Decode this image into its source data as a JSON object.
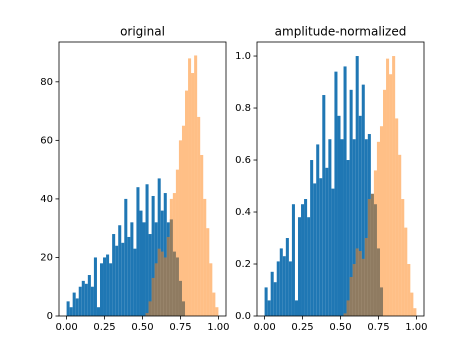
{
  "chart_data": [
    {
      "type": "histogram",
      "title": "original",
      "bins": [
        0,
        0.02,
        0.04,
        0.06,
        0.08,
        0.1,
        0.12,
        0.14,
        0.16,
        0.18,
        0.2,
        0.22,
        0.24,
        0.26,
        0.28,
        0.3,
        0.32,
        0.34,
        0.36,
        0.38,
        0.4,
        0.42,
        0.44,
        0.46,
        0.48,
        0.5,
        0.52,
        0.54,
        0.56,
        0.58,
        0.6,
        0.62,
        0.64,
        0.66,
        0.68,
        0.7,
        0.72,
        0.74,
        0.76,
        0.78,
        0.8,
        0.82,
        0.84,
        0.86,
        0.88,
        0.9,
        0.92,
        0.94,
        0.96,
        0.98,
        1
      ],
      "series": [
        {
          "color": "#1f77b4",
          "opacity": 1,
          "values": [
            5,
            3,
            8,
            6,
            10,
            12,
            11,
            14,
            10,
            20,
            3,
            18,
            20,
            21,
            18,
            28,
            24,
            31,
            25,
            40,
            27,
            32,
            23,
            44,
            36,
            32,
            45,
            28,
            41,
            32,
            47,
            36,
            42,
            32,
            33,
            22,
            20,
            12,
            5,
            0,
            0,
            0,
            0,
            0,
            0,
            0,
            0,
            0,
            0,
            0
          ]
        },
        {
          "color": "#ff7f0e",
          "opacity": 0.5,
          "values": [
            0,
            0,
            0,
            0,
            0,
            0,
            0,
            0,
            0,
            0,
            0,
            0,
            0,
            0,
            0,
            0,
            0,
            0,
            0,
            0,
            0,
            0,
            0,
            0,
            0,
            0,
            1,
            5,
            13,
            18,
            23,
            22,
            20,
            27,
            40,
            42,
            50,
            60,
            65,
            77,
            88,
            83,
            89,
            68,
            55,
            40,
            30,
            18,
            8,
            3
          ]
        }
      ],
      "xlim": [
        -0.05,
        1.05
      ],
      "xticks": [
        {
          "value": 0,
          "label": "0.00"
        },
        {
          "value": 0.25,
          "label": "0.25"
        },
        {
          "value": 0.5,
          "label": "0.50"
        },
        {
          "value": 0.75,
          "label": "0.75"
        },
        {
          "value": 1,
          "label": "1.00"
        }
      ],
      "ylim": [
        0,
        93.6
      ],
      "yticks": [
        0,
        20,
        40,
        60,
        80
      ]
    },
    {
      "type": "histogram",
      "title": "amplitude-normalized",
      "bins": [
        0,
        0.02,
        0.04,
        0.06,
        0.08,
        0.1,
        0.12,
        0.14,
        0.16,
        0.18,
        0.2,
        0.22,
        0.24,
        0.26,
        0.28,
        0.3,
        0.32,
        0.34,
        0.36,
        0.38,
        0.4,
        0.42,
        0.44,
        0.46,
        0.48,
        0.5,
        0.52,
        0.54,
        0.56,
        0.58,
        0.6,
        0.62,
        0.64,
        0.66,
        0.68,
        0.7,
        0.72,
        0.74,
        0.76,
        0.78,
        0.8,
        0.82,
        0.84,
        0.86,
        0.88,
        0.9,
        0.92,
        0.94,
        0.96,
        0.98,
        1
      ],
      "series": [
        {
          "color": "#1f77b4",
          "opacity": 1,
          "values": [
            0.11,
            0.06,
            0.17,
            0.13,
            0.21,
            0.26,
            0.23,
            0.3,
            0.21,
            0.43,
            0.06,
            0.38,
            0.43,
            0.45,
            0.38,
            0.6,
            0.51,
            0.66,
            0.53,
            0.85,
            0.57,
            0.68,
            0.49,
            0.94,
            0.77,
            0.68,
            0.96,
            0.6,
            0.87,
            0.68,
            1.0,
            0.77,
            0.89,
            0.68,
            0.7,
            0.47,
            0.43,
            0.26,
            0.11,
            0,
            0,
            0,
            0,
            0,
            0,
            0,
            0,
            0,
            0,
            0
          ]
        },
        {
          "color": "#ff7f0e",
          "opacity": 0.5,
          "values": [
            0,
            0,
            0,
            0,
            0,
            0,
            0,
            0,
            0,
            0,
            0,
            0,
            0,
            0,
            0,
            0,
            0,
            0,
            0,
            0,
            0,
            0,
            0,
            0,
            0,
            0,
            0.01,
            0.06,
            0.15,
            0.2,
            0.26,
            0.25,
            0.22,
            0.3,
            0.45,
            0.47,
            0.56,
            0.67,
            0.73,
            0.87,
            0.99,
            0.93,
            1.0,
            0.76,
            0.62,
            0.45,
            0.34,
            0.2,
            0.09,
            0.03
          ]
        }
      ],
      "xlim": [
        -0.05,
        1.05
      ],
      "xticks": [
        {
          "value": 0,
          "label": "0.00"
        },
        {
          "value": 0.25,
          "label": "0.25"
        },
        {
          "value": 0.5,
          "label": "0.50"
        },
        {
          "value": 0.75,
          "label": "0.75"
        },
        {
          "value": 1,
          "label": "1.00"
        }
      ],
      "ylim": [
        0,
        1.054
      ],
      "yticks": [
        {
          "value": 0,
          "label": "0.0"
        },
        {
          "value": 0.2,
          "label": "0.2"
        },
        {
          "value": 0.4,
          "label": "0.4"
        },
        {
          "value": 0.6,
          "label": "0.6"
        },
        {
          "value": 0.8,
          "label": "0.8"
        },
        {
          "value": 1,
          "label": "1.0"
        }
      ]
    }
  ]
}
